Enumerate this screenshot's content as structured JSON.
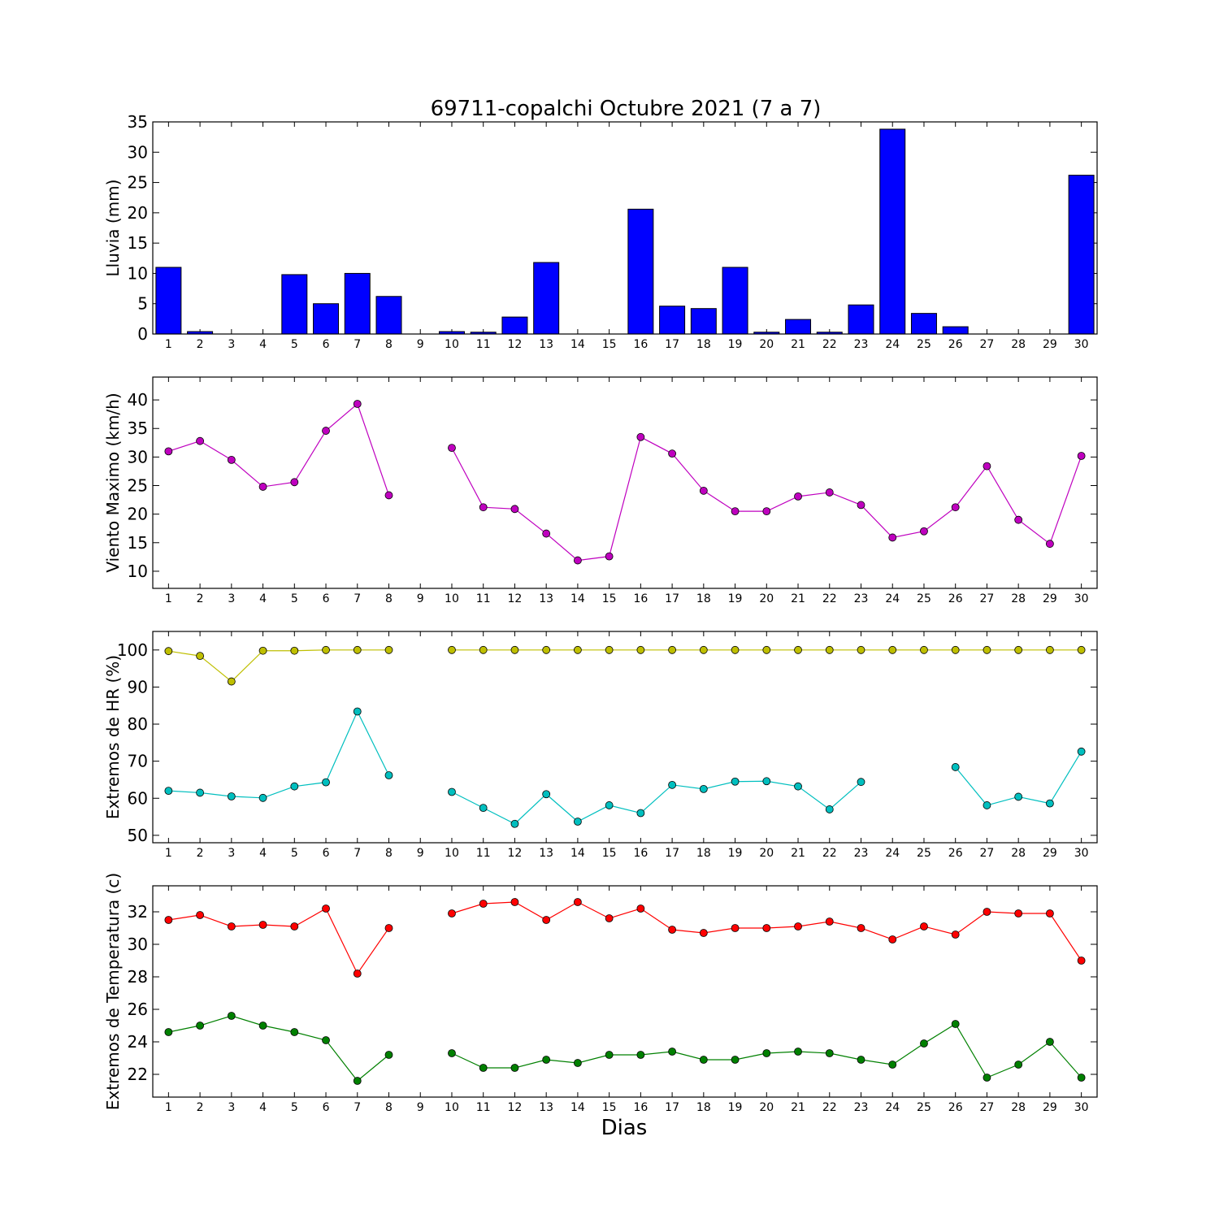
{
  "title": "69711-copalchi Octubre 2021  (7 a 7)",
  "xlabel": "Dias",
  "chart_data": [
    {
      "type": "bar",
      "ylabel": "Lluvia (mm)",
      "categories": [
        "1",
        "2",
        "3",
        "4",
        "5",
        "6",
        "7",
        "8",
        "9",
        "10",
        "11",
        "12",
        "13",
        "14",
        "15",
        "16",
        "17",
        "18",
        "19",
        "20",
        "21",
        "22",
        "23",
        "24",
        "25",
        "26",
        "27",
        "28",
        "29",
        "30"
      ],
      "ylim": [
        0,
        35
      ],
      "yticks": [
        0,
        5,
        10,
        15,
        20,
        25,
        30,
        35
      ],
      "series": [
        {
          "color": "#0000ff",
          "values": [
            11.0,
            0.4,
            0.0,
            0.0,
            9.8,
            5.0,
            10.0,
            6.2,
            0.0,
            0.4,
            0.3,
            2.8,
            11.8,
            0.0,
            0.0,
            20.6,
            4.6,
            4.2,
            11.0,
            0.3,
            2.4,
            0.3,
            4.8,
            33.8,
            3.4,
            1.2,
            0.0,
            0.0,
            0.0,
            26.2
          ]
        }
      ]
    },
    {
      "type": "line",
      "ylabel": "Viento Maximo (km/h)",
      "categories": [
        "1",
        "2",
        "3",
        "4",
        "5",
        "6",
        "7",
        "8",
        "9",
        "10",
        "11",
        "12",
        "13",
        "14",
        "15",
        "16",
        "17",
        "18",
        "19",
        "20",
        "21",
        "22",
        "23",
        "24",
        "25",
        "26",
        "27",
        "28",
        "29",
        "30"
      ],
      "ylim": [
        7,
        44
      ],
      "yticks": [
        10,
        15,
        20,
        25,
        30,
        35,
        40
      ],
      "series": [
        {
          "color": "#bf00bf",
          "values": [
            31.0,
            32.8,
            29.5,
            24.8,
            25.6,
            34.6,
            39.3,
            23.3,
            null,
            31.6,
            21.2,
            20.9,
            16.6,
            11.9,
            12.6,
            33.5,
            30.6,
            24.1,
            20.5,
            20.5,
            23.1,
            23.8,
            21.6,
            15.9,
            17.0,
            21.2,
            28.4,
            19.0,
            14.8,
            30.2
          ]
        }
      ]
    },
    {
      "type": "line",
      "ylabel": "Extremos de HR (%)",
      "categories": [
        "1",
        "2",
        "3",
        "4",
        "5",
        "6",
        "7",
        "8",
        "9",
        "10",
        "11",
        "12",
        "13",
        "14",
        "15",
        "16",
        "17",
        "18",
        "19",
        "20",
        "21",
        "22",
        "23",
        "24",
        "25",
        "26",
        "27",
        "28",
        "29",
        "30"
      ],
      "ylim": [
        48,
        105
      ],
      "yticks": [
        50,
        60,
        70,
        80,
        90,
        100
      ],
      "series": [
        {
          "color": "#bfbf00",
          "values": [
            99.7,
            98.4,
            91.5,
            99.8,
            99.8,
            100,
            100,
            100,
            null,
            100,
            100,
            100,
            100,
            100,
            100,
            100,
            100,
            100,
            100,
            100,
            100,
            100,
            100,
            100,
            100,
            100,
            100,
            100,
            100,
            100
          ]
        },
        {
          "color": "#00bfbf",
          "values": [
            62.0,
            61.5,
            60.5,
            60.1,
            63.2,
            64.3,
            83.4,
            66.2,
            null,
            61.7,
            57.4,
            53.1,
            61.1,
            53.7,
            58.1,
            56.0,
            63.6,
            62.5,
            64.5,
            64.6,
            63.2,
            57.0,
            64.4,
            null,
            null,
            68.4,
            58.1,
            60.4,
            58.6,
            72.6
          ]
        }
      ]
    },
    {
      "type": "line",
      "ylabel": "Extremos de Temperatura (c)",
      "categories": [
        "1",
        "2",
        "3",
        "4",
        "5",
        "6",
        "7",
        "8",
        "9",
        "10",
        "11",
        "12",
        "13",
        "14",
        "15",
        "16",
        "17",
        "18",
        "19",
        "20",
        "21",
        "22",
        "23",
        "24",
        "25",
        "26",
        "27",
        "28",
        "29",
        "30"
      ],
      "ylim": [
        20.6,
        33.6
      ],
      "yticks": [
        22,
        24,
        26,
        28,
        30,
        32
      ],
      "series": [
        {
          "color": "#ff0000",
          "values": [
            31.5,
            31.8,
            31.1,
            31.2,
            31.1,
            32.2,
            28.2,
            31.0,
            null,
            31.9,
            32.5,
            32.6,
            31.5,
            32.6,
            31.6,
            32.2,
            30.9,
            30.7,
            31.0,
            31.0,
            31.1,
            31.4,
            31.0,
            30.3,
            31.1,
            30.6,
            32.0,
            31.9,
            31.9,
            29.0
          ]
        },
        {
          "color": "#008000",
          "values": [
            24.6,
            25.0,
            25.6,
            25.0,
            24.6,
            24.1,
            21.6,
            23.2,
            null,
            23.3,
            22.4,
            22.4,
            22.9,
            22.7,
            23.2,
            23.2,
            23.4,
            22.9,
            22.9,
            23.3,
            23.4,
            23.3,
            22.9,
            22.6,
            23.9,
            25.1,
            21.8,
            22.6,
            24.0,
            21.8
          ]
        }
      ]
    }
  ]
}
